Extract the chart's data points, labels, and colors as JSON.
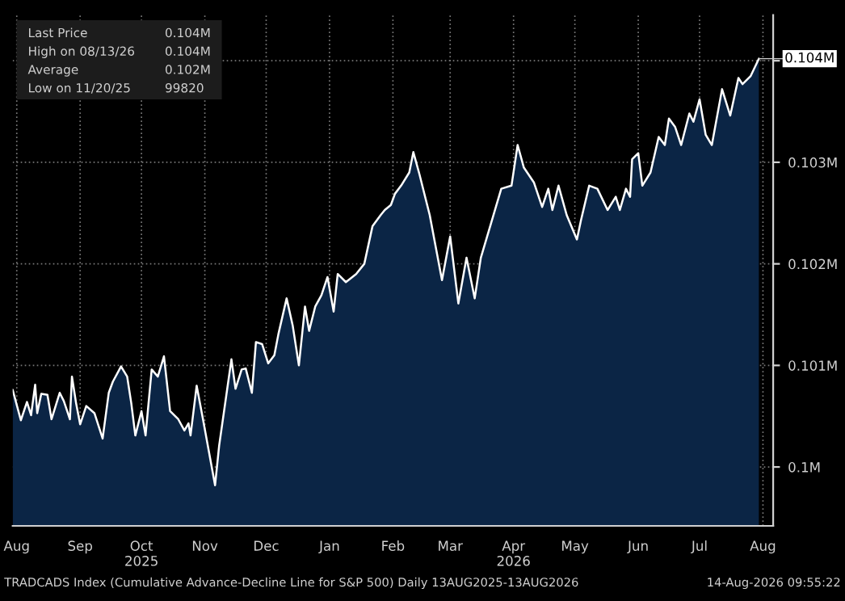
{
  "chart_data": {
    "type": "area",
    "x": [
      "2025-08-13",
      "2025-08-17",
      "2025-08-20",
      "2025-08-22",
      "2025-08-24",
      "2025-08-25",
      "2025-08-27",
      "2025-08-30",
      "2025-09-01",
      "2025-09-05",
      "2025-09-07",
      "2025-09-10",
      "2025-09-11",
      "2025-09-13",
      "2025-09-15",
      "2025-09-18",
      "2025-09-22",
      "2025-09-26",
      "2025-09-29",
      "2025-10-01",
      "2025-10-05",
      "2025-10-08",
      "2025-10-10",
      "2025-10-12",
      "2025-10-15",
      "2025-10-17",
      "2025-10-20",
      "2025-10-23",
      "2025-10-26",
      "2025-10-29",
      "2025-11-02",
      "2025-11-05",
      "2025-11-07",
      "2025-11-08",
      "2025-11-11",
      "2025-11-14",
      "2025-11-17",
      "2025-11-20",
      "2025-11-22",
      "2025-11-28",
      "2025-11-30",
      "2025-12-03",
      "2025-12-05",
      "2025-12-08",
      "2025-12-10",
      "2025-12-13",
      "2025-12-16",
      "2025-12-19",
      "2025-12-21",
      "2025-12-25",
      "2025-12-28",
      "2025-12-31",
      "2026-01-03",
      "2026-01-05",
      "2026-01-08",
      "2026-01-11",
      "2026-01-14",
      "2026-01-17",
      "2026-01-19",
      "2026-01-23",
      "2026-01-28",
      "2026-02-01",
      "2026-02-05",
      "2026-02-09",
      "2026-02-11",
      "2026-02-14",
      "2026-02-16",
      "2026-02-19",
      "2026-02-23",
      "2026-02-25",
      "2026-02-28",
      "2026-03-05",
      "2026-03-11",
      "2026-03-15",
      "2026-03-19",
      "2026-03-23",
      "2026-03-27",
      "2026-03-30",
      "2026-04-04",
      "2026-04-09",
      "2026-04-14",
      "2026-04-17",
      "2026-04-20",
      "2026-04-25",
      "2026-04-29",
      "2026-05-02",
      "2026-05-04",
      "2026-05-07",
      "2026-05-11",
      "2026-05-16",
      "2026-05-18",
      "2026-05-22",
      "2026-05-26",
      "2026-05-31",
      "2026-06-04",
      "2026-06-06",
      "2026-06-09",
      "2026-06-11",
      "2026-06-12",
      "2026-06-15",
      "2026-06-17",
      "2026-06-21",
      "2026-06-25",
      "2026-06-28",
      "2026-06-30",
      "2026-07-03",
      "2026-07-06",
      "2026-07-10",
      "2026-07-12",
      "2026-07-15",
      "2026-07-18",
      "2026-07-21",
      "2026-07-26",
      "2026-07-30",
      "2026-08-03",
      "2026-08-05",
      "2026-08-09",
      "2026-08-13"
    ],
    "series": [
      {
        "color": "#0b2545",
        "values": [
          100760,
          100460,
          100640,
          100510,
          100810,
          100530,
          100720,
          100710,
          100470,
          100730,
          100650,
          100470,
          100890,
          100630,
          100420,
          100600,
          100530,
          100280,
          100730,
          100840,
          100990,
          100890,
          100630,
          100310,
          100550,
          100310,
          100960,
          100890,
          101090,
          100550,
          100470,
          100360,
          100430,
          100310,
          100800,
          100480,
          100150,
          99820,
          100210,
          101060,
          100770,
          100960,
          100970,
          100730,
          101230,
          101210,
          101020,
          101100,
          101310,
          101660,
          101390,
          101000,
          101580,
          101340,
          101580,
          101690,
          101870,
          101530,
          101900,
          101820,
          101900,
          102000,
          102370,
          102480,
          102530,
          102580,
          102690,
          102770,
          102900,
          103100,
          102880,
          102480,
          101840,
          102270,
          101610,
          102060,
          101660,
          102060,
          102400,
          102740,
          102770,
          103170,
          102950,
          102800,
          102560,
          102740,
          102530,
          102770,
          102480,
          102240,
          102430,
          102770,
          102740,
          102530,
          102660,
          102530,
          102740,
          102660,
          103030,
          103090,
          102770,
          102900,
          103250,
          103170,
          103430,
          103350,
          103170,
          103480,
          103400,
          103620,
          103270,
          103170,
          103720,
          103460,
          103830,
          103770,
          103850,
          104020
        ]
      }
    ],
    "xlim": [
      "2025-08-13",
      "2026-08-20"
    ],
    "xticks": [
      {
        "value": "2025-08-15",
        "label": "Aug"
      },
      {
        "value": "2025-09-15",
        "label": "Sep"
      },
      {
        "value": "2025-10-15",
        "label": "Oct\n2025"
      },
      {
        "value": "2025-11-15",
        "label": "Nov"
      },
      {
        "value": "2025-12-15",
        "label": "Dec"
      },
      {
        "value": "2026-01-15",
        "label": "Jan"
      },
      {
        "value": "2026-02-15",
        "label": "Feb"
      },
      {
        "value": "2026-03-15",
        "label": "Mar"
      },
      {
        "value": "2026-04-15",
        "label": "Apr\n2026"
      },
      {
        "value": "2026-05-15",
        "label": "May"
      },
      {
        "value": "2026-06-15",
        "label": "Jun"
      },
      {
        "value": "2026-07-15",
        "label": "Jul"
      },
      {
        "value": "2026-08-15",
        "label": "Aug"
      }
    ],
    "ylim": [
      99420,
      104450
    ],
    "yticks": [
      {
        "value": 100000,
        "label": "0.1M"
      },
      {
        "value": 101000,
        "label": "0.101M"
      },
      {
        "value": 102000,
        "label": "0.102M"
      },
      {
        "value": 103000,
        "label": "0.103M"
      },
      {
        "value": 104000,
        "label": null
      }
    ],
    "grid": true,
    "annotations": [
      "Last Price",
      "0.104M",
      "High on 08/13/26",
      "0.104M",
      "Average",
      "0.102M",
      "Low on 11/20/25",
      "99820",
      {
        "text": "0.104M",
        "x": "2026-08-13",
        "y": 104020
      },
      "TRADCADS Index (Cumulative Advance-Decline Line for S&P 500) Daily 13AUG2025-13AUG2026",
      "14-Aug-2026 09:55:22"
    ]
  }
}
